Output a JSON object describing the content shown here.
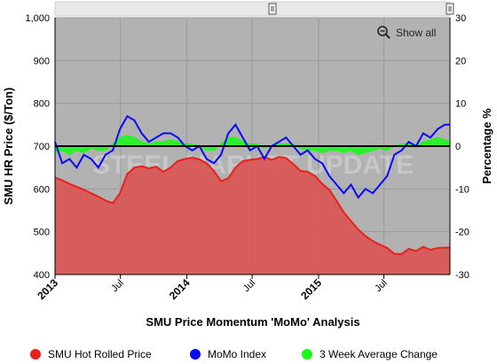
{
  "chart_data": {
    "type": "line",
    "title": "",
    "xlabel": "SMU Price Momentum 'MoMo' Analysis",
    "ylabel_left": "SMU HR Price ($/Ton)",
    "ylabel_right": "Percentage %",
    "ylim_left": [
      400,
      1000
    ],
    "ylim_right": [
      -30,
      30
    ],
    "xlim": [
      "2013-01-01",
      "2015-12-31"
    ],
    "left_ticks": [
      "400",
      "500",
      "600",
      "700",
      "800",
      "900",
      "1,000"
    ],
    "right_ticks": [
      "-30",
      "-20",
      "-10",
      "0",
      "10",
      "20",
      "30"
    ],
    "x_ticks": [
      {
        "label": "2013",
        "date": "2013-01-01",
        "bold": true
      },
      {
        "label": "Jul",
        "date": "2013-07-01",
        "bold": false
      },
      {
        "label": "2014",
        "date": "2014-01-01",
        "bold": true
      },
      {
        "label": "Jul",
        "date": "2014-07-01",
        "bold": false
      },
      {
        "label": "2015",
        "date": "2015-01-01",
        "bold": true
      },
      {
        "label": "Jul",
        "date": "2015-07-01",
        "bold": false
      }
    ],
    "grid": true,
    "legend_position": "bottom",
    "show_all_label": "Show all",
    "watermark": "STEEL MARKET UPDATE",
    "series": [
      {
        "name": "SMU Hot Rolled Price",
        "axis": "left",
        "style": "area",
        "color": "#e8221b",
        "fill": "#d95757",
        "x": [
          "2013-01-01",
          "2013-01-21",
          "2013-02-10",
          "2013-03-02",
          "2013-03-22",
          "2013-04-11",
          "2013-05-01",
          "2013-05-21",
          "2013-06-10",
          "2013-06-30",
          "2013-07-20",
          "2013-08-09",
          "2013-08-29",
          "2013-09-18",
          "2013-10-08",
          "2013-10-28",
          "2013-11-17",
          "2013-12-07",
          "2013-12-27",
          "2014-01-16",
          "2014-02-05",
          "2014-02-25",
          "2014-03-17",
          "2014-04-06",
          "2014-04-26",
          "2014-05-16",
          "2014-06-05",
          "2014-06-25",
          "2014-07-15",
          "2014-08-04",
          "2014-08-24",
          "2014-09-13",
          "2014-10-03",
          "2014-10-23",
          "2014-11-12",
          "2014-12-02",
          "2014-12-22",
          "2015-01-11",
          "2015-01-31",
          "2015-02-20",
          "2015-03-12",
          "2015-04-01",
          "2015-04-21",
          "2015-05-11",
          "2015-05-31",
          "2015-06-20",
          "2015-07-10",
          "2015-07-30",
          "2015-08-19",
          "2015-09-08",
          "2015-09-28",
          "2015-10-18",
          "2015-11-07",
          "2015-11-27",
          "2015-12-17",
          "2015-12-31"
        ],
        "y": [
          627,
          620,
          612,
          605,
          598,
          590,
          582,
          573,
          567,
          590,
          635,
          650,
          653,
          648,
          652,
          640,
          650,
          665,
          670,
          673,
          669,
          660,
          642,
          618,
          625,
          650,
          665,
          668,
          670,
          675,
          668,
          675,
          672,
          658,
          642,
          640,
          630,
          612,
          598,
          572,
          545,
          525,
          505,
          490,
          478,
          470,
          462,
          448,
          448,
          460,
          455,
          465,
          458,
          462,
          463,
          463
        ]
      },
      {
        "name": "MoMo Index",
        "axis": "right",
        "style": "line",
        "color": "#0a0af5",
        "x": [
          "2013-01-01",
          "2013-01-21",
          "2013-02-10",
          "2013-03-02",
          "2013-03-22",
          "2013-04-11",
          "2013-05-01",
          "2013-05-21",
          "2013-06-10",
          "2013-06-30",
          "2013-07-20",
          "2013-08-09",
          "2013-08-29",
          "2013-09-18",
          "2013-10-08",
          "2013-10-28",
          "2013-11-17",
          "2013-12-07",
          "2013-12-27",
          "2014-01-16",
          "2014-02-05",
          "2014-02-25",
          "2014-03-17",
          "2014-04-06",
          "2014-04-26",
          "2014-05-16",
          "2014-06-05",
          "2014-06-25",
          "2014-07-15",
          "2014-08-04",
          "2014-08-24",
          "2014-09-13",
          "2014-10-03",
          "2014-10-23",
          "2014-11-12",
          "2014-12-02",
          "2014-12-22",
          "2015-01-11",
          "2015-01-31",
          "2015-02-20",
          "2015-03-12",
          "2015-04-01",
          "2015-04-21",
          "2015-05-11",
          "2015-05-31",
          "2015-06-20",
          "2015-07-10",
          "2015-07-30",
          "2015-08-19",
          "2015-09-08",
          "2015-09-28",
          "2015-10-18",
          "2015-11-07",
          "2015-11-27",
          "2015-12-17",
          "2015-12-31"
        ],
        "y": [
          1,
          -4,
          -3,
          -5,
          -2,
          -3,
          -5,
          -2,
          -1,
          4,
          7,
          6,
          3,
          1,
          2,
          3,
          3,
          2,
          0,
          -1,
          0,
          -3,
          -4,
          -2,
          3,
          5,
          2,
          -1,
          0,
          -3,
          0,
          1,
          2,
          0,
          -2,
          -1,
          -3,
          -4,
          -7,
          -9,
          -11,
          -9,
          -12,
          -10,
          -11,
          -9,
          -7,
          -2,
          -1,
          1,
          0,
          3,
          2,
          4,
          5,
          5
        ]
      },
      {
        "name": "3 Week Average Change",
        "axis": "right",
        "style": "area",
        "color": "#1ef51e",
        "x": [
          "2013-01-01",
          "2013-01-21",
          "2013-02-10",
          "2013-03-02",
          "2013-03-22",
          "2013-04-11",
          "2013-05-01",
          "2013-05-21",
          "2013-06-10",
          "2013-06-30",
          "2013-07-20",
          "2013-08-09",
          "2013-08-29",
          "2013-09-18",
          "2013-10-08",
          "2013-10-28",
          "2013-11-17",
          "2013-12-07",
          "2013-12-27",
          "2014-01-16",
          "2014-02-05",
          "2014-02-25",
          "2014-03-17",
          "2014-04-06",
          "2014-04-26",
          "2014-05-16",
          "2014-06-05",
          "2014-06-25",
          "2014-07-15",
          "2014-08-04",
          "2014-08-24",
          "2014-09-13",
          "2014-10-03",
          "2014-10-23",
          "2014-11-12",
          "2014-12-02",
          "2014-12-22",
          "2015-01-11",
          "2015-01-31",
          "2015-02-20",
          "2015-03-12",
          "2015-04-01",
          "2015-04-21",
          "2015-05-11",
          "2015-05-31",
          "2015-06-20",
          "2015-07-10",
          "2015-07-30",
          "2015-08-19",
          "2015-09-08",
          "2015-09-28",
          "2015-10-18",
          "2015-11-07",
          "2015-11-27",
          "2015-12-17",
          "2015-12-31"
        ],
        "y": [
          -1.5,
          -1,
          -2,
          -1,
          -1.5,
          -0.5,
          -1,
          -1,
          0.5,
          2,
          2.5,
          2,
          1,
          0.5,
          1,
          1,
          1.5,
          1,
          0.5,
          0.5,
          0,
          -1,
          -1,
          0.5,
          2,
          2,
          1,
          0.5,
          0.5,
          -0.5,
          0,
          0.5,
          0.5,
          0.5,
          -0.5,
          -1,
          -1,
          -1.5,
          -1,
          -1,
          -1.5,
          -1,
          -2,
          -1.5,
          -1,
          -0.5,
          -1,
          0,
          0.5,
          0.5,
          0,
          1,
          1.5,
          2,
          1.5,
          1
        ]
      }
    ]
  }
}
